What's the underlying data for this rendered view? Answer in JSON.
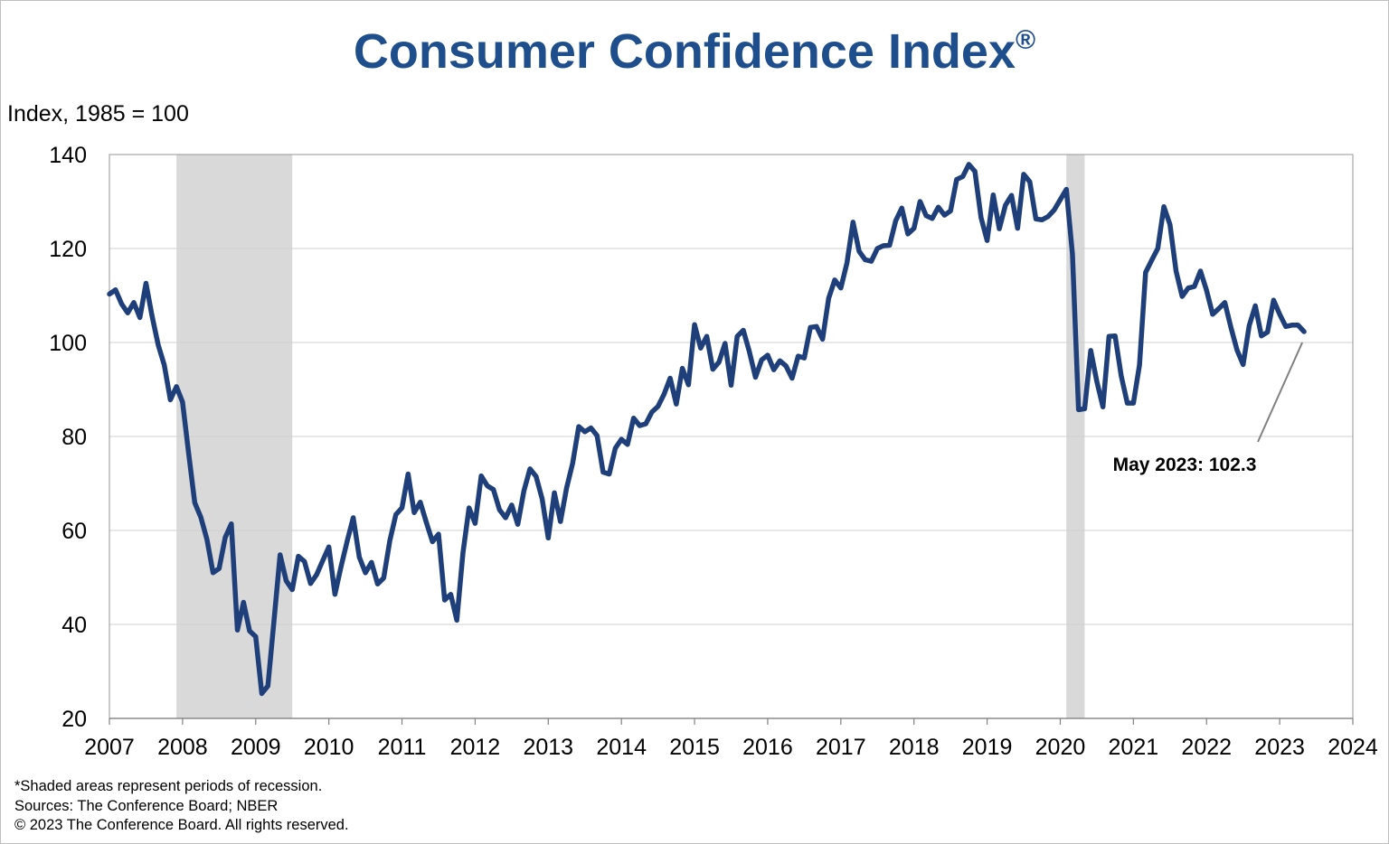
{
  "title": "Consumer Confidence Index",
  "title_mark": "®",
  "y_axis_label": "Index, 1985 = 100",
  "annotation": "May 2023: 102.3",
  "footnotes": {
    "note": "*Shaded areas represent periods of recession.",
    "sources": "Sources: The Conference Board;  NBER",
    "copyright": "© 2023 The Conference Board. All rights reserved."
  },
  "colors": {
    "line": "#1f3f7a",
    "title": "#1f4e8c",
    "recession": "#d9d9d9",
    "grid": "#d0d0d0"
  },
  "chart_data": {
    "type": "line",
    "title": "Consumer Confidence Index®",
    "ylabel": "Index, 1985 = 100",
    "xlabel": "",
    "ylim": [
      20,
      140
    ],
    "xlim": [
      2007,
      2024
    ],
    "y_ticks": [
      20,
      40,
      60,
      80,
      100,
      120,
      140
    ],
    "x_ticks": [
      2007,
      2008,
      2009,
      2010,
      2011,
      2012,
      2013,
      2014,
      2015,
      2016,
      2017,
      2018,
      2019,
      2020,
      2021,
      2022,
      2023,
      2024
    ],
    "grid": true,
    "recessions": [
      {
        "start": "2007-12",
        "end": "2009-06"
      },
      {
        "start": "2020-02",
        "end": "2020-04"
      }
    ],
    "annotation": {
      "text": "May 2023: 102.3",
      "x": "2023-05",
      "y": 102.3
    },
    "series": [
      {
        "start": "2007-01",
        "frequency": "monthly",
        "values": [
          110.3,
          111.2,
          108.2,
          106.3,
          108.5,
          105.3,
          112.6,
          105.6,
          99.5,
          95.2,
          87.8,
          90.6,
          87.3,
          76.4,
          65.9,
          62.8,
          58.1,
          51.0,
          51.9,
          58.5,
          61.4,
          38.8,
          44.7,
          38.6,
          37.4,
          25.3,
          26.9,
          40.8,
          54.8,
          49.3,
          47.4,
          54.5,
          53.4,
          48.7,
          50.6,
          53.6,
          56.5,
          46.4,
          52.3,
          57.7,
          62.7,
          54.3,
          51.0,
          53.2,
          48.6,
          49.9,
          57.8,
          63.4,
          64.8,
          72.0,
          63.8,
          66.0,
          61.7,
          57.6,
          59.2,
          45.2,
          46.4,
          40.9,
          55.2,
          64.8,
          61.5,
          71.6,
          69.5,
          68.7,
          64.4,
          62.7,
          65.4,
          61.3,
          68.4,
          73.1,
          71.5,
          66.7,
          58.4,
          68.0,
          61.9,
          69.0,
          74.3,
          82.1,
          81.0,
          81.8,
          80.2,
          72.4,
          72.0,
          77.5,
          79.4,
          78.3,
          83.9,
          82.3,
          82.7,
          85.2,
          86.4,
          89.0,
          92.4,
          86.9,
          94.5,
          91.0,
          103.8,
          98.8,
          101.3,
          94.3,
          95.8,
          99.8,
          90.9,
          101.3,
          102.6,
          98.0,
          92.6,
          96.3,
          97.3,
          94.2,
          96.1,
          95.0,
          92.4,
          97.1,
          96.7,
          103.2,
          103.4,
          100.7,
          109.4,
          113.3,
          111.6,
          116.9,
          125.6,
          119.4,
          117.6,
          117.3,
          120.0,
          120.6,
          120.7,
          125.9,
          128.6,
          123.1,
          124.3,
          130.0,
          127.0,
          126.4,
          128.8,
          127.1,
          128.0,
          134.7,
          135.3,
          137.9,
          136.4,
          126.6,
          121.7,
          131.4,
          124.2,
          129.2,
          131.3,
          124.3,
          135.8,
          134.2,
          126.3,
          126.1,
          126.8,
          128.2,
          130.4,
          132.6,
          118.8,
          85.7,
          85.9,
          98.3,
          91.7,
          86.3,
          101.3,
          101.4,
          92.9,
          87.1,
          87.1,
          95.2,
          114.9,
          117.5,
          120.0,
          128.9,
          125.1,
          115.2,
          109.8,
          111.6,
          111.9,
          115.2,
          111.1,
          106.0,
          107.2,
          108.5,
          103.2,
          98.4,
          95.3,
          103.6,
          107.8,
          101.4,
          102.2,
          109.0,
          106.0,
          103.4,
          103.7,
          103.7,
          102.3
        ]
      }
    ]
  }
}
